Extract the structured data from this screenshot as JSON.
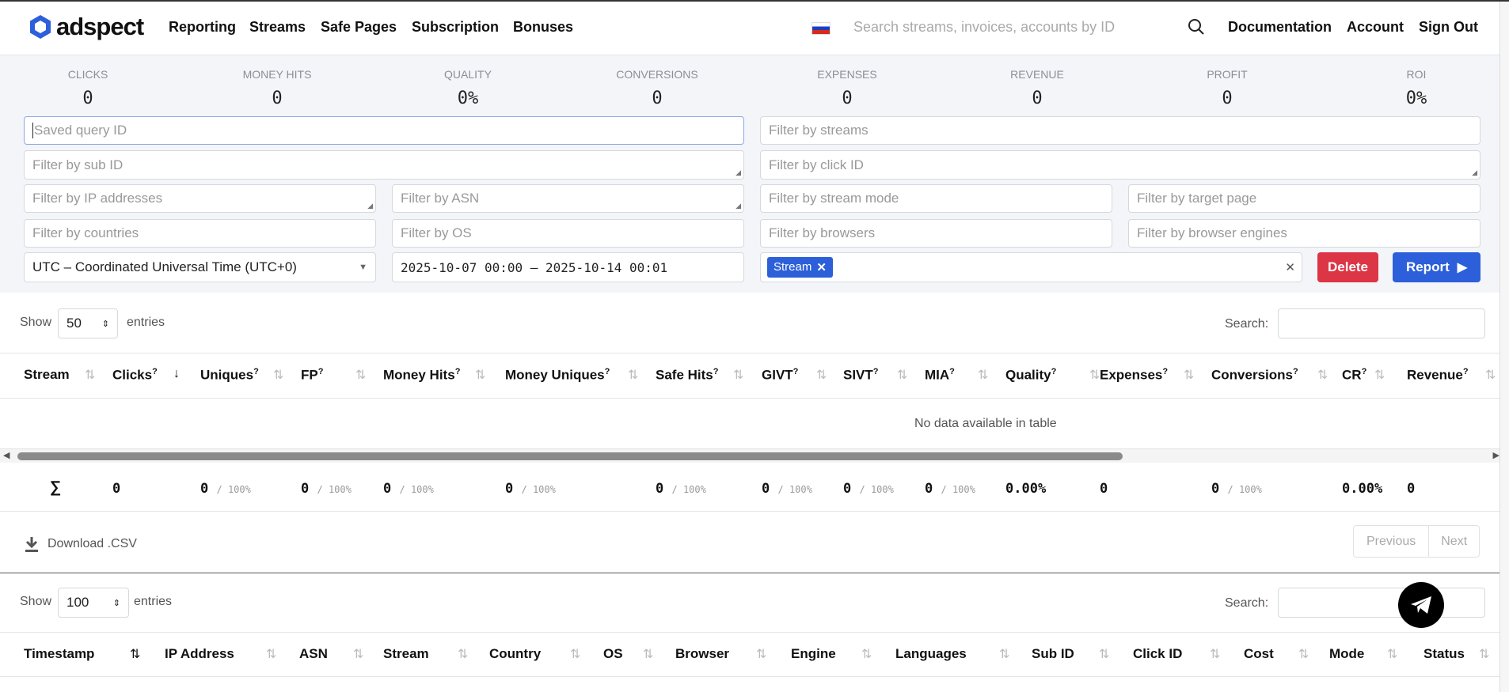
{
  "header": {
    "brand": "adspect",
    "nav": [
      "Reporting",
      "Streams",
      "Safe Pages",
      "Subscription",
      "Bonuses"
    ],
    "flag_icon": "russia-flag-icon",
    "search_placeholder": "Search streams, invoices, accounts by ID",
    "right": [
      "Documentation",
      "Account",
      "Sign Out"
    ]
  },
  "stats": [
    {
      "label": "CLICKS",
      "value": "0"
    },
    {
      "label": "MONEY HITS",
      "value": "0"
    },
    {
      "label": "QUALITY",
      "value": "0%"
    },
    {
      "label": "CONVERSIONS",
      "value": "0"
    },
    {
      "label": "EXPENSES",
      "value": "0"
    },
    {
      "label": "REVENUE",
      "value": "0"
    },
    {
      "label": "PROFIT",
      "value": "0"
    },
    {
      "label": "ROI",
      "value": "0%"
    }
  ],
  "filters": {
    "saved_query": "Saved query ID",
    "streams": "Filter by streams",
    "sub_id": "Filter by sub ID",
    "click_id": "Filter by click ID",
    "ip": "Filter by IP addresses",
    "asn": "Filter by ASN",
    "stream_mode": "Filter by stream mode",
    "target_page": "Filter by target page",
    "countries": "Filter by countries",
    "os": "Filter by OS",
    "browsers": "Filter by browsers",
    "engines": "Filter by browser engines",
    "timezone": "UTC – Coordinated Universal Time (UTC+0)",
    "daterange": "2025-10-07 00:00 – 2025-10-14 00:01",
    "group_tag": "Stream",
    "delete": "Delete",
    "report": "Report"
  },
  "colors": {
    "accent": "#2c5fd9",
    "danger": "#dc3545"
  },
  "table1": {
    "show": "Show",
    "entries_value": "50",
    "entries": "entries",
    "search_label": "Search:",
    "columns": [
      "Stream",
      "Clicks",
      "Uniques",
      "FP",
      "Money Hits",
      "Money Uniques",
      "Safe Hits",
      "GIVT",
      "SIVT",
      "MIA",
      "Quality",
      "Expenses",
      "Conversions",
      "CR",
      "Revenue"
    ],
    "sorted_column": "Clicks",
    "empty": "No data available in table",
    "totals": {
      "sigma": "∑",
      "values": [
        "0",
        "0",
        "0",
        "0",
        "0",
        "0",
        "0",
        "0",
        "0",
        "0.00%",
        "0",
        "0",
        "0.00%",
        "0"
      ],
      "pcts": [
        "",
        "/ 100%",
        "/ 100%",
        "/ 100%",
        "/ 100%",
        "/ 100%",
        "/ 100%",
        "/ 100%",
        "/ 100%",
        "",
        "",
        "/ 100%",
        "",
        ""
      ]
    },
    "download": "Download .CSV",
    "previous": "Previous",
    "next": "Next"
  },
  "table2": {
    "show": "Show",
    "entries_value": "100",
    "entries": "entries",
    "search_label": "Search:",
    "columns": [
      "Timestamp",
      "IP Address",
      "ASN",
      "Stream",
      "Country",
      "OS",
      "Browser",
      "Engine",
      "Languages",
      "Sub ID",
      "Click ID",
      "Cost",
      "Mode",
      "Status"
    ],
    "sorted_column": "Timestamp"
  }
}
